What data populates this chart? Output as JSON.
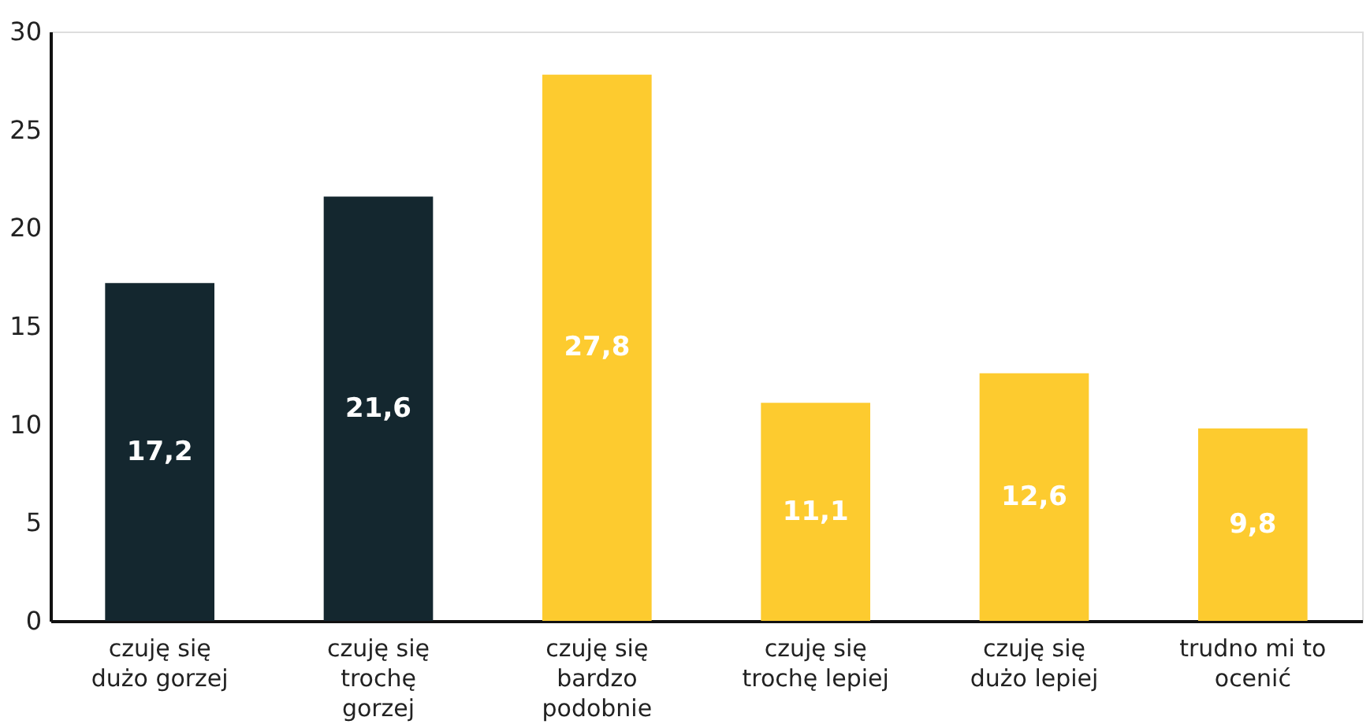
{
  "chart_data": {
    "type": "bar",
    "categories": [
      "czuję się dużo gorzej",
      "czuję się trochę gorzej",
      "czuję się bardzo podobnie",
      "czuję się trochę lepiej",
      "czuję się dużo lepiej",
      "trudno mi to ocenić"
    ],
    "values": [
      17.2,
      21.6,
      27.8,
      11.1,
      12.6,
      9.8
    ],
    "colors": [
      "#14272f",
      "#14272f",
      "#fdcb2f",
      "#fdcb2f",
      "#fdcb2f",
      "#fdcb2f"
    ],
    "value_labels": [
      "17,2",
      "21,6",
      "27,8",
      "11,1",
      "12,6",
      "9,8"
    ],
    "ylim": [
      0,
      30
    ],
    "yticks": [
      0,
      5,
      10,
      15,
      20,
      25,
      30
    ],
    "grid": false
  }
}
